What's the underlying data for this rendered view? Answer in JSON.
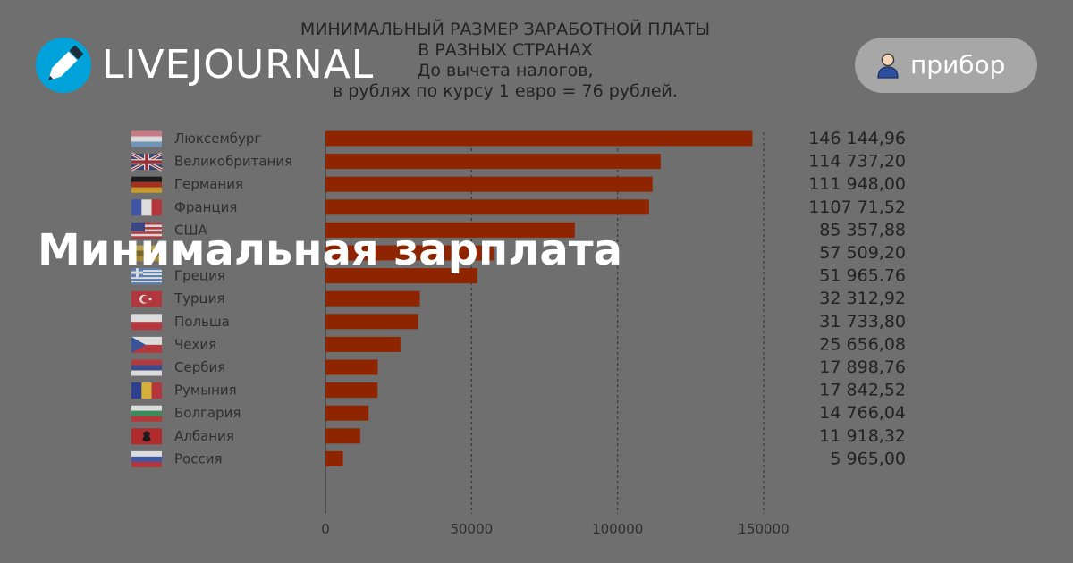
{
  "header": {
    "brand": "LIVEJOURNAL",
    "logo_icon": "livejournal-pencil-icon",
    "user_icon": "user-icon",
    "username": "прибор"
  },
  "headline": "Минимальная зарплата",
  "colors": {
    "bar": "#8f2400",
    "background": "#6f6f6f",
    "logo_blue": "#00a3d9"
  },
  "chart_data": {
    "type": "bar",
    "orientation": "horizontal",
    "title_lines": [
      "МИНИМАЛЬНЫЙ РАЗМЕР ЗАРАБОТНОЙ ПЛАТЫ",
      "В РАЗНЫХ СТРАНАХ",
      "До вычета налогов,",
      "в рублях по курсу 1 евро = 76 рублей."
    ],
    "categories": [
      "Люксембург",
      "Великобритания",
      "Германия",
      "Франция",
      "США",
      "",
      "Греция",
      "Турция",
      "Польша",
      "Чехия",
      "Сербия",
      "Румыния",
      "Болгария",
      "Албания",
      "Россия"
    ],
    "values": [
      146144.96,
      114737.2,
      111948.0,
      110771.52,
      85357.88,
      57509.2,
      51965.76,
      32312.92,
      31733.8,
      25656.08,
      17898.76,
      17842.52,
      14766.04,
      11918.32,
      5965.0
    ],
    "value_labels": [
      "146 144,96",
      "114 737,20",
      "111 948,00",
      "1107 71,52",
      "85 357,88",
      "57 509,20",
      "51 965.76",
      "32 312,92",
      "31 733,80",
      "25 656,08",
      "17 898,76",
      "17 842,52",
      "14 766,04",
      "11 918,32",
      "5 965,00"
    ],
    "flag_icons": [
      "luxembourg-flag-icon",
      "uk-flag-icon",
      "germany-flag-icon",
      "france-flag-icon",
      "usa-flag-icon",
      "flag-icon",
      "greece-flag-icon",
      "turkey-flag-icon",
      "poland-flag-icon",
      "czechia-flag-icon",
      "serbia-flag-icon",
      "romania-flag-icon",
      "bulgaria-flag-icon",
      "albania-flag-icon",
      "russia-flag-icon"
    ],
    "x_ticks": [
      0,
      50000,
      100000,
      150000
    ],
    "x_tick_labels": [
      "0",
      "50000",
      "100000",
      "150000"
    ],
    "xlim": [
      0,
      150000
    ],
    "grid": "vertical dashed"
  }
}
